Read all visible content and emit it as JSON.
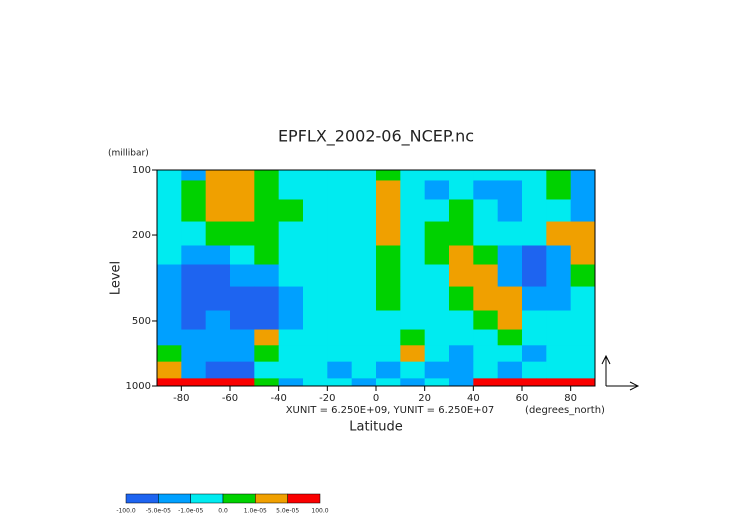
{
  "chart_data": {
    "type": "contour",
    "title": "EPFLX_2002-06_NCEP.nc",
    "y_unit": "(millibar)",
    "y_label": "Level",
    "x_label": "Latitude",
    "x_unit": "(degrees_north)",
    "vector_scale": "XUNIT = 6.250E+09, YUNIT = 6.250E+07",
    "xlim": [
      -90,
      90
    ],
    "xticks": [
      -80,
      -60,
      -40,
      -20,
      0,
      20,
      40,
      60,
      80
    ],
    "ylim": [
      100,
      1000
    ],
    "yticks": [
      100,
      200,
      500,
      1000
    ],
    "y_log": true,
    "x": [
      -85,
      -75,
      -65,
      -55,
      -45,
      -35,
      -25,
      -15,
      -5,
      5,
      15,
      25,
      35,
      45,
      55,
      65,
      75,
      85
    ],
    "levels": [
      100,
      125,
      150,
      200,
      250,
      300,
      400,
      500,
      600,
      700,
      850,
      1000
    ],
    "z": [
      [
        -5e-06,
        -3e-05,
        3e-05,
        3e-05,
        5e-06,
        -5e-06,
        -5e-06,
        -5e-06,
        -5e-06,
        5e-06,
        -5e-06,
        -5e-06,
        -5e-06,
        -5e-06,
        -5e-06,
        -5e-06,
        5e-06,
        -3e-05
      ],
      [
        -5e-06,
        5e-06,
        3e-05,
        3e-05,
        5e-06,
        -5e-06,
        -5e-06,
        -5e-06,
        -5e-06,
        3e-05,
        -5e-06,
        -3e-05,
        -5e-06,
        -3e-05,
        -3e-05,
        -5e-06,
        5e-06,
        -3e-05
      ],
      [
        -5e-06,
        5e-06,
        3e-05,
        3e-05,
        5e-06,
        5e-06,
        -5e-06,
        -5e-06,
        -5e-06,
        3e-05,
        -5e-06,
        -5e-06,
        5e-06,
        -5e-06,
        -3e-05,
        -5e-06,
        -5e-06,
        -3e-05
      ],
      [
        -5e-06,
        -5e-06,
        5e-06,
        5e-06,
        5e-06,
        -5e-06,
        -5e-06,
        -5e-06,
        -5e-06,
        3e-05,
        -5e-06,
        5e-06,
        5e-06,
        -5e-06,
        -5e-06,
        -5e-06,
        3e-05,
        3e-05
      ],
      [
        -5e-06,
        -3e-05,
        -3e-05,
        -5e-06,
        5e-06,
        -5e-06,
        -5e-06,
        -5e-06,
        -5e-06,
        5e-06,
        -5e-06,
        5e-06,
        3e-05,
        5e-06,
        -3e-05,
        -0.0001,
        -3e-05,
        3e-05
      ],
      [
        -3e-05,
        -0.0001,
        -0.0001,
        -3e-05,
        -3e-05,
        -5e-06,
        -5e-06,
        -5e-06,
        -5e-06,
        5e-06,
        -5e-06,
        -5e-06,
        3e-05,
        3e-05,
        -3e-05,
        -0.0001,
        -3e-05,
        5e-06
      ],
      [
        -3e-05,
        -0.0001,
        -0.0001,
        -0.0001,
        -0.0001,
        -3e-05,
        -5e-06,
        -5e-06,
        -5e-06,
        5e-06,
        -5e-06,
        -5e-06,
        5e-06,
        3e-05,
        3e-05,
        -3e-05,
        -3e-05,
        -5e-06
      ],
      [
        -3e-05,
        -0.0001,
        -3e-05,
        -0.0001,
        -0.0001,
        -3e-05,
        -5e-06,
        -5e-06,
        -5e-06,
        -5e-06,
        -5e-06,
        -5e-06,
        -5e-06,
        5e-06,
        3e-05,
        -5e-06,
        -5e-06,
        -5e-06
      ],
      [
        -3e-05,
        -3e-05,
        -3e-05,
        -3e-05,
        3e-05,
        -5e-06,
        -5e-06,
        -5e-06,
        -5e-06,
        -5e-06,
        5e-06,
        -5e-06,
        -5e-06,
        -5e-06,
        5e-06,
        -5e-06,
        -5e-06,
        -5e-06
      ],
      [
        5e-06,
        -3e-05,
        -3e-05,
        -3e-05,
        5e-06,
        -5e-06,
        -5e-06,
        -5e-06,
        -5e-06,
        -5e-06,
        3e-05,
        -5e-06,
        -3e-05,
        -5e-06,
        -5e-06,
        -3e-05,
        -5e-06,
        -5e-06
      ],
      [
        3e-05,
        -3e-05,
        -0.0001,
        -0.0001,
        -5e-06,
        -5e-06,
        -5e-06,
        -3e-05,
        -5e-06,
        -3e-05,
        -5e-06,
        -3e-05,
        -3e-05,
        -5e-06,
        -3e-05,
        -5e-06,
        -5e-06,
        -5e-06
      ],
      [
        0.0001,
        0.0001,
        0.0001,
        0.0001,
        5e-06,
        -3e-05,
        -5e-06,
        -5e-06,
        -3e-05,
        -5e-06,
        -3e-05,
        -5e-06,
        -3e-05,
        0.0001,
        0.0001,
        0.0001,
        0.0001,
        0.0001
      ]
    ],
    "colorbar": {
      "levels": [
        {
          "value": -100,
          "label": "-100.0"
        },
        {
          "value": -5e-05,
          "label": "-5.0e-05"
        },
        {
          "value": -1e-05,
          "label": "-1.0e-05"
        },
        {
          "value": 0,
          "label": "0.0"
        },
        {
          "value": 1e-05,
          "label": "1.0e-05"
        },
        {
          "value": 5e-05,
          "label": "5.0e-05"
        },
        {
          "value": 100,
          "label": "100.0"
        }
      ],
      "colors": [
        "#1e64f0",
        "#00a0ff",
        "#00ebf0",
        "#00d200",
        "#f0a000",
        "#fa0000"
      ]
    }
  }
}
